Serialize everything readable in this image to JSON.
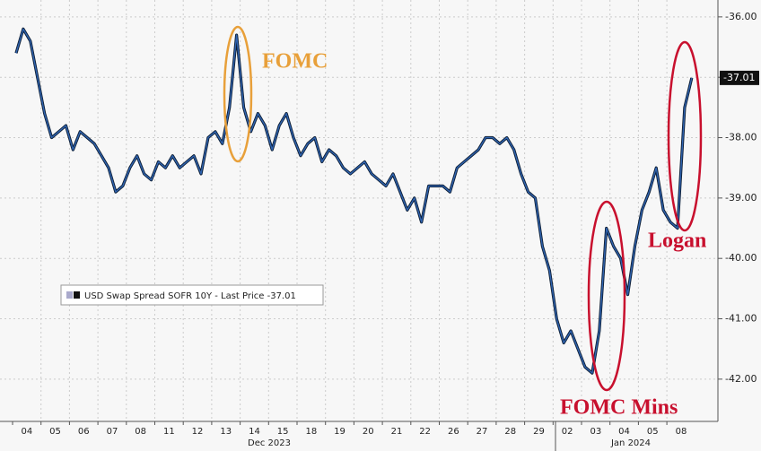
{
  "chart_data": {
    "type": "line",
    "categories": [
      "04",
      null,
      null,
      null,
      "05",
      null,
      null,
      null,
      "06",
      null,
      null,
      null,
      "07",
      null,
      null,
      null,
      "08",
      null,
      null,
      null,
      "11",
      null,
      null,
      null,
      "12",
      null,
      null,
      null,
      "13",
      null,
      null,
      null,
      "14",
      null,
      null,
      null,
      "15",
      null,
      null,
      null,
      "18",
      null,
      null,
      null,
      "19",
      null,
      null,
      null,
      "20",
      null,
      null,
      null,
      "21",
      null,
      null,
      null,
      "22",
      null,
      null,
      null,
      "26",
      null,
      null,
      null,
      "27",
      null,
      null,
      null,
      "28",
      null,
      null,
      null,
      "29",
      null,
      null,
      null,
      "02",
      null,
      null,
      null,
      "03",
      null,
      null,
      null,
      "04",
      null,
      null,
      null,
      "05",
      null,
      null,
      null,
      "08",
      null,
      null,
      null
    ],
    "x_group_labels": [
      "Dec 2023",
      "Jan 2024"
    ],
    "series": [
      {
        "name": "USD Swap Spread SOFR 10Y - Last Price -37.01",
        "color": "#2f63b0",
        "values": [
          -36.6,
          -36.2,
          -36.4,
          -37.0,
          -37.6,
          -38.0,
          -37.9,
          -37.8,
          -38.2,
          -37.9,
          -38.0,
          -38.1,
          -38.3,
          -38.5,
          -38.9,
          -38.8,
          -38.5,
          -38.3,
          -38.6,
          -38.7,
          -38.4,
          -38.5,
          -38.3,
          -38.5,
          -38.4,
          -38.3,
          -38.6,
          -38.0,
          -37.9,
          -38.1,
          -37.5,
          -36.3,
          -37.5,
          -37.9,
          -37.6,
          -37.8,
          -38.2,
          -37.8,
          -37.6,
          -38.0,
          -38.3,
          -38.1,
          -38.0,
          -38.4,
          -38.2,
          -38.3,
          -38.5,
          -38.6,
          -38.5,
          -38.4,
          -38.6,
          -38.7,
          -38.8,
          -38.6,
          -38.9,
          -39.2,
          -39.0,
          -39.4,
          -38.8,
          -38.8,
          -38.8,
          -38.9,
          -38.5,
          -38.4,
          -38.3,
          -38.2,
          -38.0,
          -38.0,
          -38.1,
          -38.0,
          -38.2,
          -38.6,
          -38.9,
          -39.0,
          -39.8,
          -40.2,
          -41.0,
          -41.4,
          -41.2,
          -41.5,
          -41.8,
          -41.9,
          -41.2,
          -39.5,
          -39.8,
          -40.0,
          -40.6,
          -39.8,
          -39.2,
          -38.9,
          -38.5,
          -39.2,
          -39.4,
          -39.5,
          -37.5,
          -37.01
        ]
      }
    ],
    "last_price": -37.01,
    "ylim": [
      -42.7,
      -35.72
    ],
    "yticks": [
      {
        "value": -36,
        "label": "-36.00"
      },
      {
        "value": -37,
        "label": "-37.00"
      },
      {
        "value": -38,
        "label": "-38.00"
      },
      {
        "value": -39,
        "label": "-39.00"
      },
      {
        "value": -40,
        "label": "-40.00"
      },
      {
        "value": -41,
        "label": "-41.00"
      },
      {
        "value": -42,
        "label": "-42.00"
      }
    ],
    "annotations": [
      "FOMC",
      "FOMC Mins",
      "Logan"
    ],
    "grid": true
  }
}
